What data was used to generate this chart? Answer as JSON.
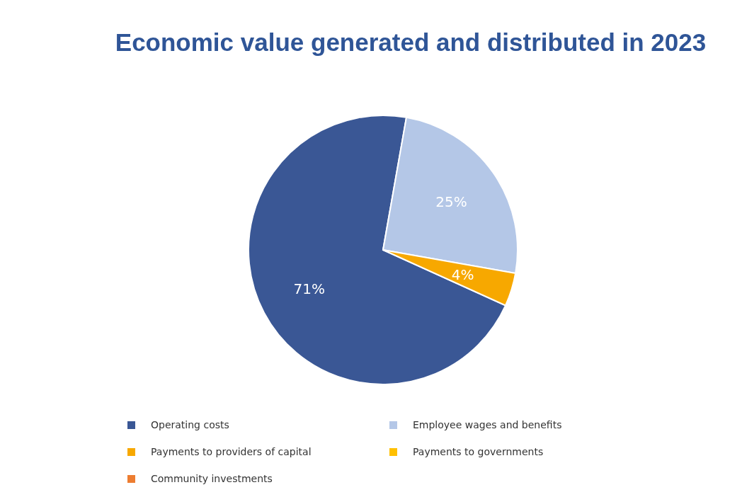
{
  "chart_data": {
    "type": "pie",
    "title": "Economic value generated and distributed in  2023",
    "categories": [
      "Operating costs",
      "Employee wages and benefits",
      "Payments to providers of capital",
      "Payments to governments",
      "Community investments"
    ],
    "values": [
      71,
      25,
      4,
      0,
      0
    ],
    "colors": [
      "#3a5795",
      "#b4c7e7",
      "#f7a800",
      "#ffc000",
      "#ed7d31"
    ],
    "value_labels": [
      "71%",
      "25%",
      "4%",
      null,
      null
    ],
    "legend": "bottom"
  }
}
